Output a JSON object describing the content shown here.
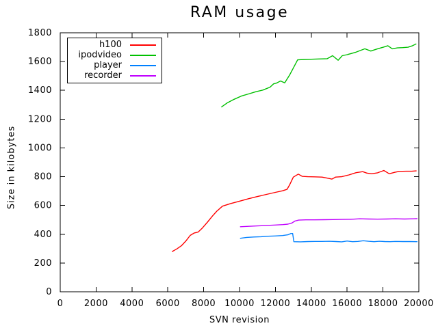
{
  "chart_data": {
    "type": "line",
    "title": "RAM usage",
    "xlabel": "SVN revision",
    "ylabel": "Size in kilobytes",
    "xlim": [
      0,
      20000
    ],
    "ylim": [
      0,
      1800
    ],
    "xticks": [
      0,
      2000,
      4000,
      6000,
      8000,
      10000,
      12000,
      14000,
      16000,
      18000,
      20000
    ],
    "yticks": [
      0,
      200,
      400,
      600,
      800,
      1000,
      1200,
      1400,
      1600,
      1800
    ],
    "grid": false,
    "legend_position": "top-left",
    "background": "#ffffff",
    "axis_color": "#000000",
    "series": [
      {
        "name": "h100",
        "color": "#ff0000",
        "points": [
          [
            6250,
            280
          ],
          [
            6500,
            298
          ],
          [
            6760,
            320
          ],
          [
            7000,
            352
          ],
          [
            7250,
            392
          ],
          [
            7460,
            408
          ],
          [
            7690,
            415
          ],
          [
            7900,
            440
          ],
          [
            8200,
            482
          ],
          [
            8500,
            528
          ],
          [
            8730,
            560
          ],
          [
            9050,
            595
          ],
          [
            9500,
            613
          ],
          [
            10000,
            630
          ],
          [
            10500,
            647
          ],
          [
            11000,
            662
          ],
          [
            11500,
            677
          ],
          [
            12000,
            691
          ],
          [
            12400,
            702
          ],
          [
            12650,
            712
          ],
          [
            12800,
            745
          ],
          [
            13000,
            797
          ],
          [
            13280,
            818
          ],
          [
            13500,
            802
          ],
          [
            13800,
            800
          ],
          [
            14200,
            799
          ],
          [
            14600,
            797
          ],
          [
            14900,
            790
          ],
          [
            15150,
            783
          ],
          [
            15350,
            797
          ],
          [
            15700,
            800
          ],
          [
            16100,
            812
          ],
          [
            16500,
            828
          ],
          [
            16870,
            835
          ],
          [
            17100,
            825
          ],
          [
            17370,
            820
          ],
          [
            17700,
            827
          ],
          [
            18050,
            843
          ],
          [
            18350,
            820
          ],
          [
            18650,
            830
          ],
          [
            18900,
            837
          ],
          [
            19300,
            838
          ],
          [
            19600,
            838
          ],
          [
            19850,
            840
          ]
        ]
      },
      {
        "name": "ipodvideo",
        "color": "#00c000",
        "points": [
          [
            9000,
            1285
          ],
          [
            9300,
            1312
          ],
          [
            9700,
            1338
          ],
          [
            10100,
            1360
          ],
          [
            10500,
            1375
          ],
          [
            10900,
            1390
          ],
          [
            11300,
            1402
          ],
          [
            11700,
            1422
          ],
          [
            11900,
            1445
          ],
          [
            12050,
            1450
          ],
          [
            12290,
            1465
          ],
          [
            12520,
            1452
          ],
          [
            12790,
            1506
          ],
          [
            13000,
            1555
          ],
          [
            13240,
            1612
          ],
          [
            13600,
            1615
          ],
          [
            14000,
            1616
          ],
          [
            14400,
            1618
          ],
          [
            14890,
            1620
          ],
          [
            15190,
            1641
          ],
          [
            15500,
            1609
          ],
          [
            15730,
            1641
          ],
          [
            16000,
            1648
          ],
          [
            16490,
            1665
          ],
          [
            16990,
            1689
          ],
          [
            17320,
            1673
          ],
          [
            17700,
            1689
          ],
          [
            18020,
            1700
          ],
          [
            18270,
            1710
          ],
          [
            18520,
            1689
          ],
          [
            18800,
            1695
          ],
          [
            19100,
            1697
          ],
          [
            19400,
            1700
          ],
          [
            19650,
            1710
          ],
          [
            19840,
            1722
          ]
        ]
      },
      {
        "name": "player",
        "color": "#0080ff",
        "points": [
          [
            10050,
            372
          ],
          [
            10400,
            378
          ],
          [
            10800,
            381
          ],
          [
            11200,
            383
          ],
          [
            11600,
            386
          ],
          [
            12000,
            388
          ],
          [
            12400,
            391
          ],
          [
            12700,
            396
          ],
          [
            12870,
            405
          ],
          [
            12960,
            405
          ],
          [
            13030,
            348
          ],
          [
            13400,
            347
          ],
          [
            13800,
            349
          ],
          [
            14200,
            350
          ],
          [
            14600,
            350
          ],
          [
            15000,
            351
          ],
          [
            15400,
            349
          ],
          [
            15700,
            347
          ],
          [
            16000,
            353
          ],
          [
            16300,
            348
          ],
          [
            16600,
            350
          ],
          [
            16900,
            355
          ],
          [
            17200,
            351
          ],
          [
            17500,
            348
          ],
          [
            17800,
            351
          ],
          [
            18100,
            349
          ],
          [
            18400,
            348
          ],
          [
            18700,
            350
          ],
          [
            19100,
            349
          ],
          [
            19500,
            349
          ],
          [
            19900,
            348
          ]
        ]
      },
      {
        "name": "recorder",
        "color": "#c000ff",
        "points": [
          [
            10050,
            452
          ],
          [
            10500,
            455
          ],
          [
            11000,
            458
          ],
          [
            11500,
            461
          ],
          [
            12000,
            464
          ],
          [
            12420,
            467
          ],
          [
            12700,
            470
          ],
          [
            12900,
            477
          ],
          [
            13100,
            492
          ],
          [
            13300,
            498
          ],
          [
            13700,
            500
          ],
          [
            14200,
            500
          ],
          [
            14700,
            501
          ],
          [
            15200,
            502
          ],
          [
            15700,
            503
          ],
          [
            16200,
            504
          ],
          [
            16700,
            507
          ],
          [
            17200,
            506
          ],
          [
            17700,
            505
          ],
          [
            18200,
            506
          ],
          [
            18700,
            507
          ],
          [
            19200,
            506
          ],
          [
            19700,
            507
          ],
          [
            19900,
            508
          ]
        ]
      }
    ]
  }
}
